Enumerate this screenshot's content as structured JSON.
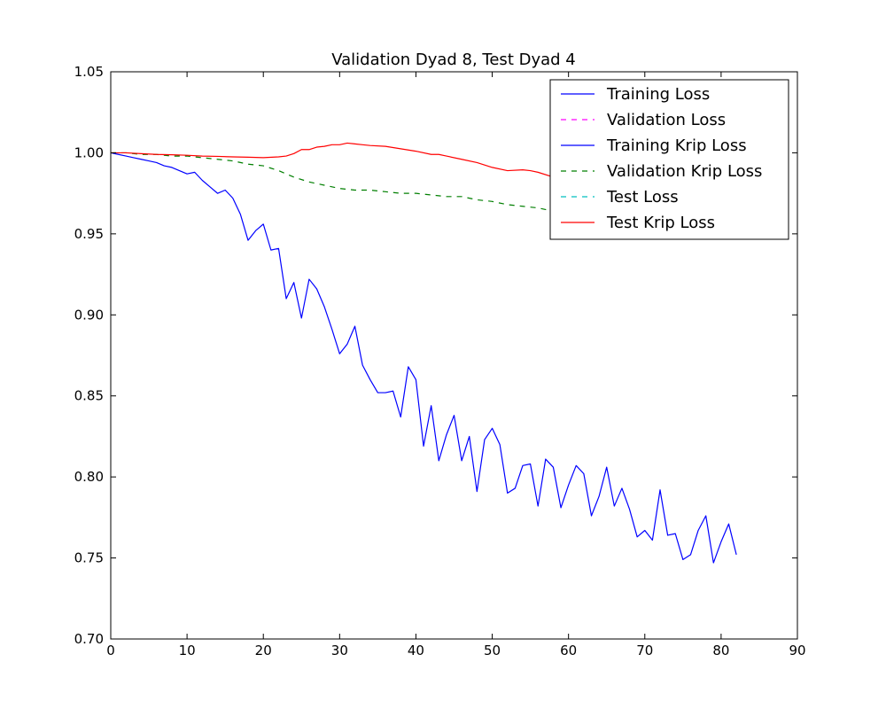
{
  "chart_data": {
    "type": "line",
    "title": "Validation Dyad 8, Test Dyad 4",
    "xlabel": "",
    "ylabel": "",
    "xlim": [
      0,
      90
    ],
    "ylim": [
      0.7,
      1.05
    ],
    "xticks": [
      "0",
      "10",
      "20",
      "30",
      "40",
      "50",
      "60",
      "70",
      "80",
      "90"
    ],
    "yticks": [
      "0.70",
      "0.75",
      "0.80",
      "0.85",
      "0.90",
      "0.95",
      "1.00",
      "1.05"
    ],
    "grid": false,
    "legend_position": "top-right",
    "legend": [
      {
        "name": "Training Loss",
        "color": "#0000ff",
        "style": "solid"
      },
      {
        "name": "Validation Loss",
        "color": "#ff00ff",
        "style": "dashed"
      },
      {
        "name": "Training Krip Loss",
        "color": "#0000ff",
        "style": "solid"
      },
      {
        "name": "Validation Krip Loss",
        "color": "#007f00",
        "style": "dashed"
      },
      {
        "name": "Test Loss",
        "color": "#00bfbf",
        "style": "dashed"
      },
      {
        "name": "Test Krip Loss",
        "color": "#ff0000",
        "style": "solid"
      }
    ],
    "series": [
      {
        "name": "Training Krip Loss",
        "color": "#0000ff",
        "style": "solid",
        "x": [
          0,
          1,
          2,
          3,
          4,
          5,
          6,
          7,
          8,
          9,
          10,
          11,
          12,
          13,
          14,
          15,
          16,
          17,
          18,
          19,
          20,
          21,
          22,
          23,
          24,
          25,
          26,
          27,
          28,
          29,
          30,
          31,
          32,
          33,
          34,
          35,
          36,
          37,
          38,
          39,
          40,
          41,
          42,
          43,
          44,
          45,
          46,
          47,
          48,
          49,
          50,
          51,
          52,
          53,
          54,
          55,
          56,
          57,
          58,
          59,
          60,
          61,
          62,
          63,
          64,
          65,
          66,
          67,
          68,
          69,
          70,
          71,
          72,
          73,
          74,
          75,
          76,
          77,
          78,
          79,
          80,
          81,
          82
        ],
        "y": [
          1.0,
          0.999,
          0.998,
          0.997,
          0.996,
          0.995,
          0.994,
          0.992,
          0.991,
          0.989,
          0.987,
          0.988,
          0.983,
          0.979,
          0.975,
          0.977,
          0.972,
          0.962,
          0.946,
          0.952,
          0.956,
          0.94,
          0.941,
          0.91,
          0.92,
          0.898,
          0.922,
          0.916,
          0.905,
          0.891,
          0.876,
          0.882,
          0.893,
          0.869,
          0.86,
          0.852,
          0.852,
          0.853,
          0.837,
          0.868,
          0.86,
          0.819,
          0.844,
          0.81,
          0.826,
          0.838,
          0.81,
          0.825,
          0.791,
          0.823,
          0.83,
          0.82,
          0.79,
          0.793,
          0.807,
          0.808,
          0.782,
          0.811,
          0.806,
          0.781,
          0.795,
          0.807,
          0.802,
          0.776,
          0.788,
          0.806,
          0.782,
          0.793,
          0.78,
          0.763,
          0.767,
          0.761,
          0.792,
          0.764,
          0.765,
          0.749,
          0.752,
          0.767,
          0.776,
          0.747,
          0.76,
          0.771,
          0.752
        ]
      },
      {
        "name": "Validation Krip Loss",
        "color": "#007f00",
        "style": "dashed",
        "x": [
          0,
          2,
          4,
          6,
          8,
          10,
          12,
          14,
          16,
          18,
          20,
          22,
          24,
          26,
          28,
          30,
          32,
          34,
          36,
          38,
          40,
          42,
          44,
          46,
          48,
          50,
          52,
          54,
          56,
          58,
          60,
          62
        ],
        "y": [
          1.0,
          1.0,
          0.999,
          0.999,
          0.998,
          0.998,
          0.997,
          0.996,
          0.995,
          0.993,
          0.992,
          0.989,
          0.985,
          0.982,
          0.98,
          0.978,
          0.977,
          0.977,
          0.976,
          0.975,
          0.975,
          0.974,
          0.973,
          0.973,
          0.971,
          0.97,
          0.968,
          0.967,
          0.966,
          0.964,
          0.963,
          0.962
        ]
      },
      {
        "name": "Test Krip Loss",
        "color": "#ff0000",
        "style": "solid",
        "x": [
          0,
          2,
          4,
          6,
          8,
          10,
          12,
          14,
          16,
          18,
          20,
          22,
          23,
          24,
          25,
          26,
          27,
          28,
          29,
          30,
          31,
          32,
          33,
          34,
          36,
          38,
          40,
          42,
          43,
          44,
          46,
          48,
          50,
          52,
          54,
          55,
          56,
          58,
          60,
          62
        ],
        "y": [
          1.0,
          1.0,
          0.9995,
          0.999,
          0.9988,
          0.9985,
          0.998,
          0.9978,
          0.9975,
          0.9973,
          0.997,
          0.9975,
          0.998,
          0.9995,
          1.002,
          1.002,
          1.0035,
          1.004,
          1.005,
          1.005,
          1.006,
          1.0055,
          1.005,
          1.0045,
          1.004,
          1.0025,
          1.001,
          0.999,
          0.999,
          0.998,
          0.996,
          0.994,
          0.991,
          0.989,
          0.9895,
          0.989,
          0.988,
          0.985,
          0.983,
          0.981
        ]
      }
    ]
  }
}
